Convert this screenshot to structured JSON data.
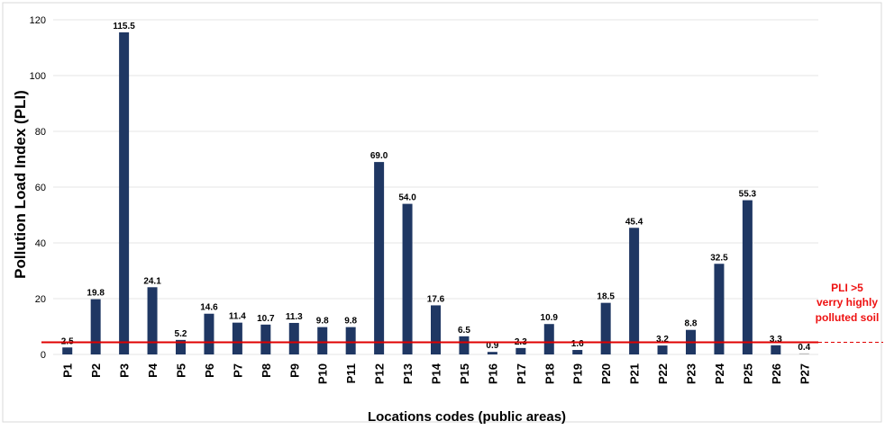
{
  "chart_data": {
    "type": "bar",
    "title": "",
    "xlabel": "Locations codes (public areas)",
    "ylabel": "Pollution Load Index  (PLI)",
    "ylim": [
      0,
      120
    ],
    "yticks": [
      "0",
      "20",
      "40",
      "60",
      "80",
      "100",
      "120"
    ],
    "grid": true,
    "categories": [
      "P1",
      "P2",
      "P3",
      "P4",
      "P5",
      "P6",
      "P7",
      "P8",
      "P9",
      "P10",
      "P11",
      "P12",
      "P13",
      "P14",
      "P15",
      "P16",
      "P17",
      "P18",
      "P19",
      "P20",
      "P21",
      "P22",
      "P23",
      "P24",
      "P25",
      "P26",
      "P27"
    ],
    "values": [
      2.5,
      19.8,
      115.5,
      24.1,
      5.2,
      14.6,
      11.4,
      10.7,
      11.3,
      9.8,
      9.8,
      69.0,
      54.0,
      17.6,
      6.5,
      0.9,
      2.3,
      10.9,
      1.6,
      18.5,
      45.4,
      3.2,
      8.8,
      32.5,
      55.3,
      3.3,
      0.4
    ],
    "value_labels": [
      "2.5",
      "19.8",
      "115.5",
      "24.1",
      "5.2",
      "14.6",
      "11.4",
      "10.7",
      "11.3",
      "9.8",
      "9.8",
      "69.0",
      "54.0",
      "17.6",
      "6.5",
      "0.9",
      "2.3",
      "10.9",
      "1.6",
      "18.5",
      "45.4",
      "3.2",
      "8.8",
      "32.5",
      "55.3",
      "3.3",
      "0.4"
    ],
    "reference_line": {
      "value": 5,
      "label_lines": [
        "PLI >5",
        "verry highly",
        "polluted soil"
      ]
    },
    "colors": {
      "bar": "#1f3763",
      "bar_last": "#bfbfbf",
      "reference_line": "#e00000",
      "reference_label": "#ee1111",
      "grid": "#e6e6e6"
    }
  }
}
